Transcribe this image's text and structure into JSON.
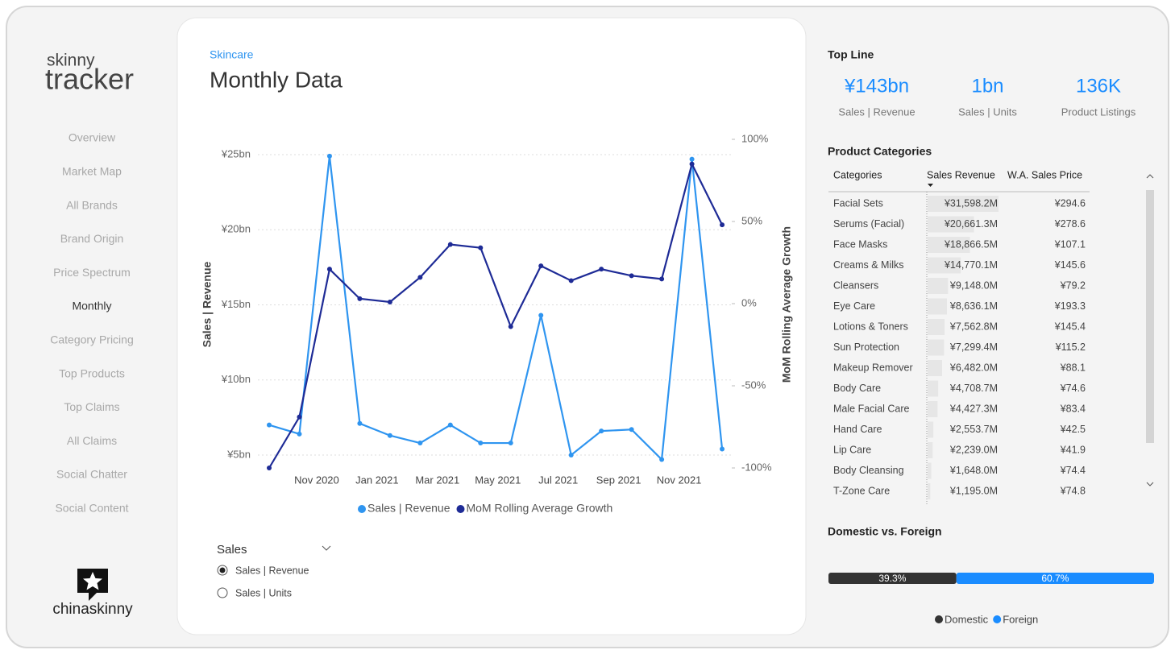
{
  "logo": {
    "line1": "skinny",
    "line2": "tracker",
    "brand": "chinaskinny"
  },
  "nav": {
    "items": [
      "Overview",
      "Market Map",
      "All Brands",
      "Brand Origin",
      "Price Spectrum",
      "Monthly",
      "Category Pricing",
      "Top Products",
      "Top Claims",
      "All Claims",
      "Social Chatter",
      "Social Content"
    ],
    "active": 5
  },
  "header": {
    "breadcrumb": "Skincare",
    "title": "Monthly Data"
  },
  "slicer": {
    "title": "Sales",
    "options": [
      "Sales | Revenue",
      "Sales | Units"
    ],
    "selected": 0
  },
  "top_line": {
    "title": "Top Line",
    "kpis": [
      {
        "value": "¥143bn",
        "label": "Sales | Revenue"
      },
      {
        "value": "1bn",
        "label": "Sales | Units"
      },
      {
        "value": "136K",
        "label": "Product Listings"
      }
    ]
  },
  "table": {
    "title": "Product Categories",
    "columns": [
      "Categories",
      "Sales Revenue",
      "W.A. Sales Price"
    ],
    "rows": [
      [
        "Facial Sets",
        "¥31,598.2M",
        "¥294.6"
      ],
      [
        "Serums (Facial)",
        "¥20,661.3M",
        "¥278.6"
      ],
      [
        "Face Masks",
        "¥18,866.5M",
        "¥107.1"
      ],
      [
        "Creams & Milks",
        "¥14,770.1M",
        "¥145.6"
      ],
      [
        "Cleansers",
        "¥9,148.0M",
        "¥79.2"
      ],
      [
        "Eye Care",
        "¥8,636.1M",
        "¥193.3"
      ],
      [
        "Lotions & Toners",
        "¥7,562.8M",
        "¥145.4"
      ],
      [
        "Sun Protection",
        "¥7,299.4M",
        "¥115.2"
      ],
      [
        "Makeup Remover",
        "¥6,482.0M",
        "¥88.1"
      ],
      [
        "Body Care",
        "¥4,708.7M",
        "¥74.6"
      ],
      [
        "Male Facial Care",
        "¥4,427.3M",
        "¥83.4"
      ],
      [
        "Hand Care",
        "¥2,553.7M",
        "¥42.5"
      ],
      [
        "Lip Care",
        "¥2,239.0M",
        "¥41.9"
      ],
      [
        "Body Cleansing",
        "¥1,648.0M",
        "¥74.4"
      ],
      [
        "T-Zone Care",
        "¥1,195.0M",
        "¥74.8"
      ]
    ]
  },
  "chart_data": [
    {
      "type": "line",
      "y_label": "Sales | Revenue",
      "y2_label": "MoM Rolling Average Growth",
      "categories": [
        null,
        null,
        "Nov 2020",
        null,
        "Jan 2021",
        null,
        "Mar 2021",
        null,
        "May 2021",
        null,
        "Jul 2021",
        null,
        "Sep 2021",
        null,
        "Nov 2021",
        null
      ],
      "series": [
        {
          "name": "Sales | Revenue",
          "color": "#2f95f0",
          "values": [
            7.0,
            6.4,
            24.9,
            7.1,
            6.3,
            5.8,
            7.0,
            5.8,
            5.8,
            14.3,
            5.0,
            6.6,
            6.7,
            4.7,
            24.7,
            5.4
          ]
        },
        {
          "name": "MoM Rolling Average Growth",
          "color": "#1e2b96",
          "axis": "y2",
          "values": [
            -100,
            -69,
            21,
            3,
            1,
            16,
            36,
            34,
            -14,
            23,
            14,
            21,
            17,
            15,
            85,
            48
          ]
        }
      ],
      "ylim": [
        4.14,
        26.02
      ],
      "yticks": [
        {
          "value": 5,
          "label": "¥5bn"
        },
        {
          "value": 10,
          "label": "¥10bn"
        },
        {
          "value": 15,
          "label": "¥15bn"
        },
        {
          "value": 20,
          "label": "¥20bn"
        },
        {
          "value": 25,
          "label": "¥25bn"
        }
      ],
      "y2lim": [
        -100,
        100
      ],
      "y2ticks": [
        {
          "value": -100,
          "label": "-100%"
        },
        {
          "value": -50,
          "label": "-50%"
        },
        {
          "value": 0,
          "label": "0%"
        },
        {
          "value": 50,
          "label": "50%"
        },
        {
          "value": 100,
          "label": "100%"
        }
      ],
      "grid": true,
      "legend": "bottom"
    },
    {
      "type": "stacked-bar",
      "title": "Domestic vs. Foreign",
      "xlim": [
        0,
        100
      ],
      "legend": "bottom",
      "series": [
        {
          "name": "Domestic",
          "color": "#333333",
          "values": [
            39.3
          ],
          "value_labels": [
            "39.3%"
          ]
        },
        {
          "name": "Foreign",
          "color": "#1a8cff",
          "values": [
            60.7
          ],
          "value_labels": [
            "60.7%"
          ]
        }
      ]
    }
  ]
}
